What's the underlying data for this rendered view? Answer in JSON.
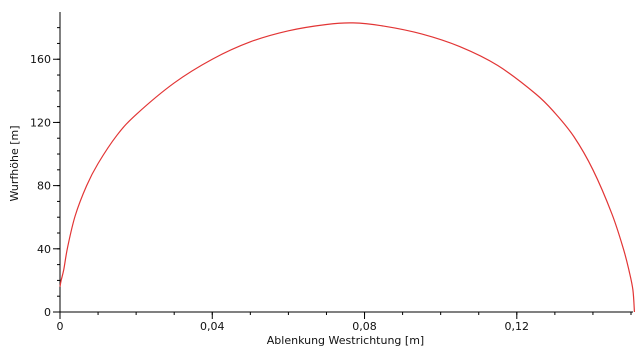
{
  "chart_data": {
    "type": "line",
    "title": "",
    "xlabel": "Ablenkung Westrichtung [m]",
    "ylabel": "Wurfhöhe [m]",
    "xlim": [
      0,
      0.15
    ],
    "ylim": [
      0,
      188
    ],
    "x_major_ticks": [
      0,
      0.04,
      0.08,
      0.12
    ],
    "x_tick_labels": [
      "0",
      "0,04",
      "0,08",
      "0,12"
    ],
    "x_minor_step": 0.01,
    "y_major_ticks": [
      0,
      40,
      80,
      120,
      160
    ],
    "y_tick_labels": [
      "0",
      "40",
      "80",
      "120",
      "160"
    ],
    "y_minor_step": 10,
    "grid": false,
    "legend": "none",
    "series": [
      {
        "name": "",
        "color": "#e23535",
        "x": [
          0,
          0.0003,
          0.001,
          0.002,
          0.004,
          0.007,
          0.01,
          0.015,
          0.02,
          0.03,
          0.04,
          0.05,
          0.06,
          0.07,
          0.077,
          0.085,
          0.095,
          0.105,
          0.115,
          0.125,
          0.13,
          0.135,
          0.14,
          0.145,
          0.148,
          0.1495,
          0.1505,
          0.1509
        ],
        "y": [
          16,
          20,
          27,
          41,
          61,
          80,
          94,
          112,
          125,
          145,
          160,
          171,
          178,
          182,
          183,
          181,
          176,
          168,
          156,
          138,
          126,
          111,
          90,
          62,
          40,
          26,
          14,
          0
        ]
      }
    ]
  }
}
